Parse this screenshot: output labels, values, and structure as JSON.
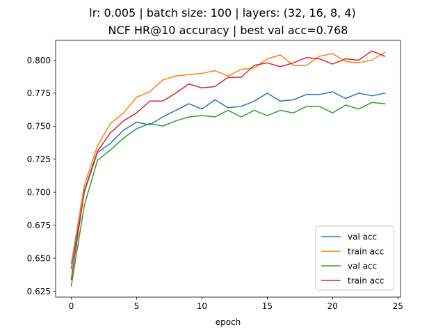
{
  "chart_data": {
    "type": "line",
    "title": "lr: 0.005 | batch size: 100 | layers: (32, 16, 8, 4)",
    "subtitle": "NCF HR@10 accuracy | best val acc=0.768",
    "xlabel": "epoch",
    "ylabel": "",
    "xlim": [
      -1.2,
      25.2
    ],
    "ylim": [
      0.6205,
      0.815
    ],
    "xticks": [
      0,
      5,
      10,
      15,
      20,
      25
    ],
    "yticks": [
      0.625,
      0.65,
      0.675,
      0.7,
      0.725,
      0.75,
      0.775,
      0.8
    ],
    "grid": false,
    "legend_position": "lower-right",
    "x": [
      0,
      1,
      2,
      3,
      4,
      5,
      6,
      7,
      8,
      9,
      10,
      11,
      12,
      13,
      14,
      15,
      16,
      17,
      18,
      19,
      20,
      21,
      22,
      23,
      24
    ],
    "series": [
      {
        "name": "val acc",
        "color": "#1f77b4",
        "values": [
          0.642,
          0.7,
          0.73,
          0.737,
          0.747,
          0.753,
          0.751,
          0.757,
          0.762,
          0.767,
          0.763,
          0.77,
          0.764,
          0.765,
          0.769,
          0.775,
          0.769,
          0.77,
          0.774,
          0.774,
          0.776,
          0.771,
          0.775,
          0.773,
          0.775
        ]
      },
      {
        "name": "train acc",
        "color": "#ff7f0e",
        "values": [
          0.646,
          0.705,
          0.735,
          0.752,
          0.76,
          0.772,
          0.776,
          0.785,
          0.788,
          0.789,
          0.79,
          0.792,
          0.788,
          0.793,
          0.794,
          0.801,
          0.804,
          0.796,
          0.796,
          0.803,
          0.805,
          0.799,
          0.798,
          0.8,
          0.806
        ]
      },
      {
        "name": "val acc",
        "color": "#2ca02c",
        "values": [
          0.629,
          0.69,
          0.724,
          0.732,
          0.741,
          0.748,
          0.752,
          0.75,
          0.754,
          0.757,
          0.758,
          0.757,
          0.762,
          0.757,
          0.762,
          0.758,
          0.762,
          0.76,
          0.765,
          0.765,
          0.76,
          0.766,
          0.763,
          0.768,
          0.767
        ]
      },
      {
        "name": "train acc",
        "color": "#d62728",
        "values": [
          0.634,
          0.701,
          0.731,
          0.745,
          0.754,
          0.76,
          0.769,
          0.769,
          0.775,
          0.782,
          0.779,
          0.78,
          0.787,
          0.787,
          0.796,
          0.798,
          0.795,
          0.798,
          0.802,
          0.801,
          0.797,
          0.801,
          0.8,
          0.807,
          0.803
        ]
      }
    ]
  }
}
